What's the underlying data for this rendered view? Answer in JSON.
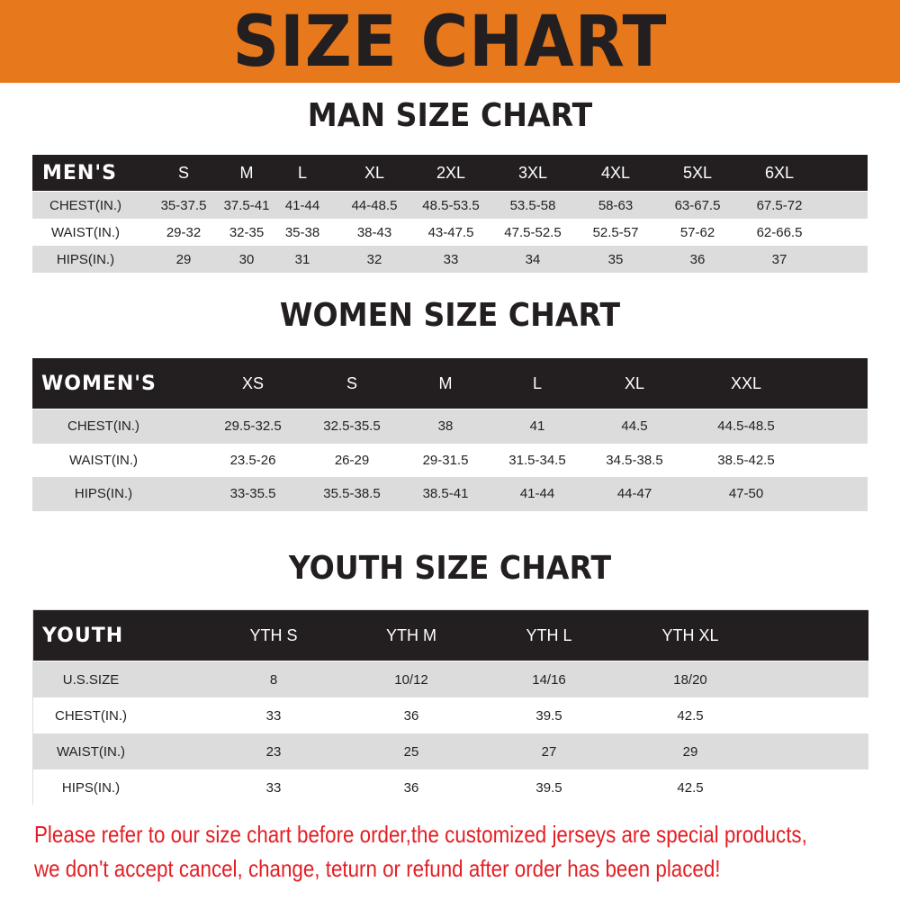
{
  "banner": {
    "title": "SIZE CHART",
    "color": "#e8781c"
  },
  "men": {
    "title": "MAN SIZE CHART",
    "header": "MEN'S",
    "sizes": [
      "S",
      "M",
      "L",
      "XL",
      "2XL",
      "3XL",
      "4XL",
      "5XL",
      "6XL"
    ],
    "rows": [
      {
        "label": "CHEST(IN.)",
        "values": [
          "35-37.5",
          "37.5-41",
          "41-44",
          "44-48.5",
          "48.5-53.5",
          "53.5-58",
          "58-63",
          "63-67.5",
          "67.5-72"
        ]
      },
      {
        "label": "WAIST(IN.)",
        "values": [
          "29-32",
          "32-35",
          "35-38",
          "38-43",
          "43-47.5",
          "47.5-52.5",
          "52.5-57",
          "57-62",
          "62-66.5"
        ]
      },
      {
        "label": "HIPS(IN.)",
        "values": [
          "29",
          "30",
          "31",
          "32",
          "33",
          "34",
          "35",
          "36",
          "37"
        ]
      }
    ]
  },
  "women": {
    "title": "WOMEN SIZE CHART",
    "header": "WOMEN'S",
    "sizes": [
      "XS",
      "S",
      "M",
      "L",
      "XL",
      "XXL"
    ],
    "rows": [
      {
        "label": "CHEST(IN.)",
        "values": [
          "29.5-32.5",
          "32.5-35.5",
          "38",
          "41",
          "44.5",
          "44.5-48.5"
        ]
      },
      {
        "label": "WAIST(IN.)",
        "values": [
          "23.5-26",
          "26-29",
          "29-31.5",
          "31.5-34.5",
          "34.5-38.5",
          "38.5-42.5"
        ]
      },
      {
        "label": "HIPS(IN.)",
        "values": [
          "33-35.5",
          "35.5-38.5",
          "38.5-41",
          "41-44",
          "44-47",
          "47-50"
        ]
      }
    ]
  },
  "youth": {
    "title": "YOUTH SIZE CHART",
    "header": "YOUTH",
    "sizes": [
      "YTH S",
      "YTH M",
      "YTH L",
      "YTH XL"
    ],
    "rows": [
      {
        "label": "U.S.SIZE",
        "values": [
          "8",
          "10/12",
          "14/16",
          "18/20"
        ]
      },
      {
        "label": "CHEST(IN.)",
        "values": [
          "33",
          "36",
          "39.5",
          "42.5"
        ]
      },
      {
        "label": "WAIST(IN.)",
        "values": [
          "23",
          "25",
          "27",
          "29"
        ]
      },
      {
        "label": "HIPS(IN.)",
        "values": [
          "33",
          "36",
          "39.5",
          "42.5"
        ]
      }
    ]
  },
  "notice": {
    "line1": "Please refer to our size chart before order,the customized jerseys are special products,",
    "line2": "we don't accept cancel, change, teturn or refund after order has been placed!",
    "color": "#e31e24"
  }
}
